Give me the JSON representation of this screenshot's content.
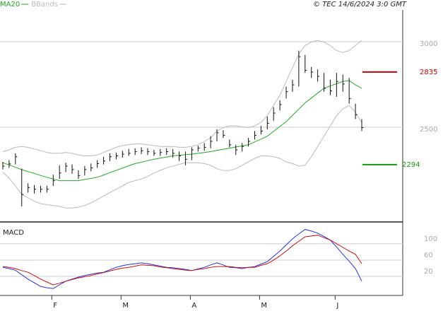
{
  "chart_data": {
    "type": "ohlc",
    "legend": [
      {
        "name": "MA20",
        "color": "#22aa22"
      },
      {
        "name": "BBands",
        "color": "#bbbbbb"
      }
    ],
    "copyright": "© TEC 14/6/2024 3:0 GMT",
    "categories": [
      null,
      null,
      null,
      null,
      null,
      null,
      null,
      null,
      "F",
      null,
      null,
      null,
      null,
      null,
      null,
      null,
      null,
      null,
      null,
      "M",
      null,
      null,
      null,
      null,
      null,
      null,
      null,
      null,
      null,
      null,
      "A",
      null,
      null,
      null,
      null,
      null,
      null,
      null,
      null,
      null,
      null,
      "M",
      null,
      null,
      null,
      null,
      null,
      null,
      null,
      null,
      null,
      null,
      null,
      "J",
      null,
      null,
      null,
      null
    ],
    "ylim": [
      1967,
      3194
    ],
    "yticks": [
      3000,
      2500
    ],
    "grid": true,
    "bar_color": "#111111",
    "high": [
      2310,
      2320,
      2360,
      2270,
      2185,
      2175,
      2170,
      2170,
      2235,
      2290,
      2305,
      2295,
      2260,
      2285,
      2300,
      2320,
      2340,
      2360,
      2365,
      2375,
      2385,
      2390,
      2395,
      2390,
      2380,
      2385,
      2390,
      2385,
      2370,
      2370,
      2395,
      2405,
      2420,
      2460,
      2500,
      2495,
      2440,
      2410,
      2420,
      2450,
      2490,
      2520,
      2575,
      2630,
      2670,
      2750,
      2790,
      2960,
      2935,
      2865,
      2850,
      2830,
      2790,
      2830,
      2820,
      2800,
      2650,
      2560
    ],
    "low": [
      2265,
      2275,
      2295,
      2050,
      2130,
      2125,
      2130,
      2130,
      2170,
      2210,
      2250,
      2240,
      2210,
      2230,
      2255,
      2275,
      2295,
      2315,
      2325,
      2335,
      2345,
      2350,
      2355,
      2350,
      2345,
      2345,
      2350,
      2335,
      2315,
      2290,
      2320,
      2370,
      2375,
      2390,
      2430,
      2450,
      2395,
      2350,
      2370,
      2400,
      2440,
      2470,
      2500,
      2550,
      2610,
      2680,
      2720,
      2750,
      2830,
      2800,
      2780,
      2720,
      2700,
      2690,
      2720,
      2650,
      2560,
      2490
    ],
    "close": [
      2285,
      2298,
      2340,
      2120,
      2160,
      2150,
      2150,
      2150,
      2200,
      2245,
      2285,
      2265,
      2230,
      2265,
      2275,
      2300,
      2315,
      2340,
      2345,
      2355,
      2360,
      2370,
      2375,
      2370,
      2360,
      2365,
      2370,
      2360,
      2345,
      2325,
      2380,
      2390,
      2395,
      2430,
      2480,
      2465,
      2410,
      2380,
      2400,
      2430,
      2465,
      2490,
      2535,
      2595,
      2645,
      2720,
      2760,
      2925,
      2845,
      2835,
      2810,
      2740,
      2725,
      2780,
      2765,
      2680,
      2585,
      2510
    ],
    "ma20": [
      2305,
      2292,
      2278,
      2265,
      2253,
      2242,
      2230,
      2220,
      2210,
      2200,
      2200,
      2200,
      2200,
      2207,
      2213,
      2220,
      2233,
      2247,
      2260,
      2273,
      2287,
      2300,
      2308,
      2317,
      2325,
      2332,
      2338,
      2345,
      2348,
      2352,
      2355,
      2360,
      2365,
      2370,
      2377,
      2383,
      2390,
      2397,
      2403,
      2410,
      2427,
      2443,
      2460,
      2488,
      2517,
      2545,
      2582,
      2618,
      2655,
      2683,
      2712,
      2740,
      2753,
      2767,
      2780,
      2785,
      2760,
      2740
    ],
    "bb_upper": [
      2370,
      2380,
      2395,
      2400,
      2395,
      2385,
      2375,
      2365,
      2360,
      2360,
      2365,
      2360,
      2350,
      2345,
      2345,
      2350,
      2365,
      2380,
      2395,
      2405,
      2410,
      2415,
      2415,
      2410,
      2405,
      2400,
      2400,
      2400,
      2395,
      2395,
      2400,
      2410,
      2430,
      2450,
      2490,
      2510,
      2520,
      2520,
      2515,
      2510,
      2520,
      2540,
      2580,
      2640,
      2700,
      2780,
      2860,
      2940,
      2990,
      3010,
      3020,
      3010,
      2990,
      2960,
      2950,
      2960,
      2990,
      3020
    ],
    "bb_lower": [
      2250,
      2215,
      2170,
      2120,
      2100,
      2080,
      2065,
      2060,
      2055,
      2050,
      2040,
      2040,
      2045,
      2055,
      2070,
      2090,
      2110,
      2130,
      2150,
      2170,
      2190,
      2200,
      2210,
      2225,
      2245,
      2260,
      2275,
      2285,
      2295,
      2305,
      2305,
      2305,
      2300,
      2290,
      2270,
      2260,
      2260,
      2270,
      2290,
      2310,
      2330,
      2345,
      2345,
      2340,
      2330,
      2310,
      2300,
      2285,
      2290,
      2340,
      2400,
      2460,
      2520,
      2580,
      2620,
      2640,
      2600,
      2540
    ],
    "levels": [
      {
        "value": 2835,
        "color": "#cc0000"
      },
      {
        "value": 2294,
        "color": "#119911"
      }
    ],
    "macd": {
      "title": "MACD",
      "ylim": [
        -39,
        138
      ],
      "yticks": [
        100,
        60,
        20
      ],
      "series": [
        {
          "color": "#2233dd",
          "values": [
            30,
            27,
            23,
            12,
            1,
            -8,
            -17,
            -20,
            -22,
            -13,
            -4,
            1,
            6,
            10,
            13,
            16,
            18,
            24,
            30,
            34,
            37,
            39,
            41,
            39,
            36,
            33,
            30,
            29,
            27,
            25,
            22,
            26,
            30,
            36,
            41,
            36,
            30,
            29,
            27,
            30,
            32,
            38,
            44,
            57,
            70,
            85,
            100,
            112,
            123,
            119,
            114,
            106,
            97,
            80,
            62,
            45,
            27,
            -4
          ]
        },
        {
          "color": "#cc1111",
          "values": [
            32,
            30,
            27,
            22,
            18,
            10,
            1,
            -6,
            -13,
            -9,
            -4,
            0,
            4,
            7,
            10,
            14,
            17,
            21,
            25,
            28,
            30,
            33,
            36,
            35,
            34,
            31,
            29,
            27,
            25,
            23,
            22,
            25,
            27,
            30,
            32,
            32,
            32,
            30,
            29,
            30,
            30,
            35,
            39,
            48,
            58,
            70,
            83,
            94,
            105,
            107,
            109,
            103,
            97,
            88,
            79,
            70,
            62,
            39
          ]
        }
      ]
    }
  }
}
